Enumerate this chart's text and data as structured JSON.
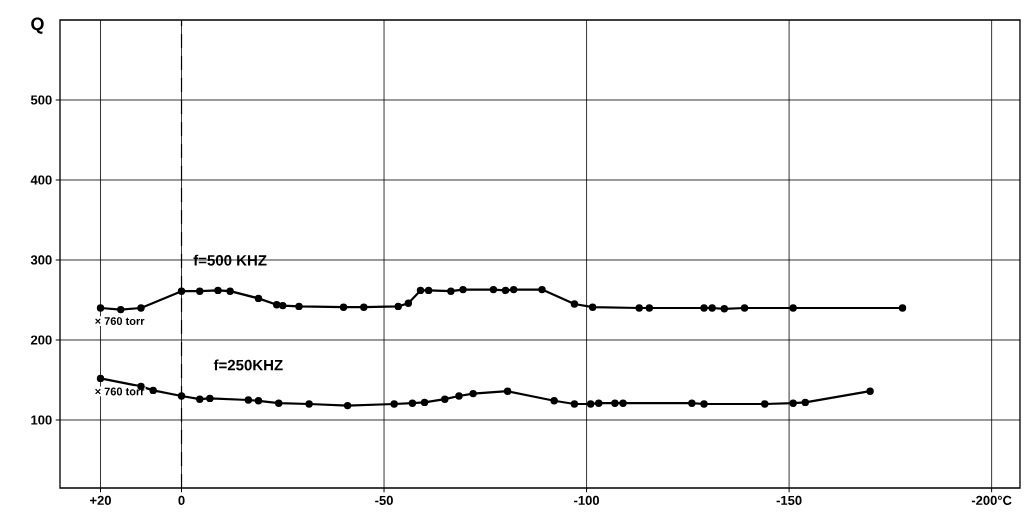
{
  "chart_data": {
    "type": "line",
    "ylabel": "Q",
    "xlim": [
      30,
      -207
    ],
    "ylim": [
      15,
      600
    ],
    "xticks": [
      {
        "value": 20,
        "label": "+20"
      },
      0,
      -50,
      -100,
      -150,
      {
        "value": -200,
        "label": "-200°C"
      }
    ],
    "yticks": [
      100,
      200,
      300,
      400,
      500
    ],
    "grid": true,
    "marker": "circle",
    "line_style": "solid",
    "ref_lines": [
      {
        "axis": "x",
        "value": 0,
        "line_style": "dashed"
      }
    ],
    "annotations": [
      "× 760 torr",
      "× 760 torr"
    ],
    "series": [
      {
        "name": "f=500 KHZ",
        "color": "#000000",
        "x": [
          20,
          15,
          10,
          0,
          -4.5,
          -9,
          -12,
          -19,
          -23.5,
          -25,
          -29,
          -40,
          -45,
          -53.5,
          -56,
          -59,
          -61,
          -66.5,
          -69.5,
          -77,
          -80,
          -82,
          -89,
          -97,
          -101.5,
          -113,
          -115.5,
          -129,
          -131,
          -134,
          -139,
          -151,
          -178
        ],
        "values": [
          240,
          238,
          240,
          261,
          261,
          262,
          261,
          252,
          244,
          243,
          242,
          241,
          241,
          242,
          246,
          262,
          262,
          261,
          263,
          263,
          262,
          263,
          263,
          245,
          241,
          240,
          240,
          240,
          240,
          239,
          240,
          240,
          240
        ]
      },
      {
        "name": "f=250KHZ",
        "color": "#000000",
        "x": [
          20,
          10,
          7,
          0,
          -4.5,
          -7,
          -16.5,
          -19,
          -24,
          -31.5,
          -41,
          -52.5,
          -57,
          -60,
          -65,
          -68.5,
          -72,
          -80.5,
          -92,
          -97,
          -101,
          -103,
          -107,
          -109,
          -126,
          -129,
          -144,
          -151,
          -154,
          -170
        ],
        "values": [
          152,
          142,
          137,
          130,
          126,
          127,
          125,
          124,
          121,
          120,
          118,
          120,
          121,
          122,
          126,
          130,
          133,
          136,
          124,
          120,
          120,
          121,
          121,
          121,
          121,
          120,
          120,
          121,
          122,
          136
        ]
      }
    ]
  }
}
